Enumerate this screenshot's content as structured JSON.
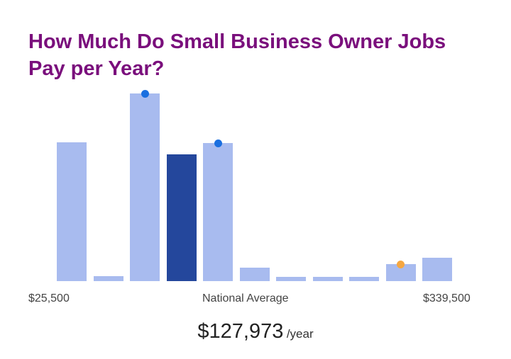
{
  "title": "How Much Do Small Business Owner Jobs Pay per Year?",
  "labels": {
    "min": "$25,500",
    "center": "National Average",
    "max": "$339,500"
  },
  "average": {
    "value": "$127,973",
    "unit": "/year"
  },
  "colors": {
    "bar": "#a8bbef",
    "highlight": "#24479c",
    "title": "#7a0f7c",
    "dot_blue": "#1a6fe0",
    "dot_orange": "#f5a742"
  },
  "chart_data": {
    "type": "bar",
    "title": "How Much Do Small Business Owner Jobs Pay per Year?",
    "xlabel": "",
    "ylabel": "",
    "x_range": [
      "$25,500",
      "$339,500"
    ],
    "categories": [
      "1",
      "2",
      "3",
      "4",
      "5",
      "6",
      "7",
      "8",
      "9",
      "10",
      "11"
    ],
    "values": [
      196,
      7,
      265,
      179,
      195,
      19,
      6,
      6,
      6,
      24,
      33
    ],
    "highlight_index": 3,
    "markers": [
      {
        "bar": 2,
        "color": "#1a6fe0"
      },
      {
        "bar": 4,
        "color": "#1a6fe0"
      },
      {
        "bar": 9,
        "color": "#f5a742"
      }
    ],
    "annotations": [
      "National Average",
      "$127,973 /year"
    ],
    "grid": false
  }
}
